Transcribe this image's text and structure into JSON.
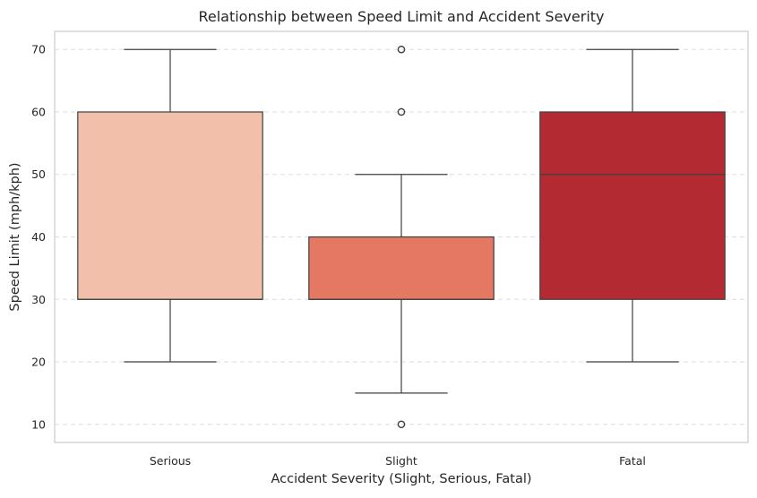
{
  "chart_data": {
    "type": "box",
    "title": "Relationship between Speed Limit and Accident Severity",
    "xlabel": "Accident Severity (Slight, Serious, Fatal)",
    "ylabel": "Speed Limit (mph/kph)",
    "categories": [
      "Serious",
      "Slight",
      "Fatal"
    ],
    "yticks": [
      10,
      20,
      30,
      40,
      50,
      60,
      70
    ],
    "ylim": [
      7.1,
      72.9
    ],
    "grid": "y-dashed",
    "boxes": [
      {
        "category": "Serious",
        "whisker_low": 20,
        "q1": 30,
        "median": 30,
        "q3": 60,
        "whisker_high": 70,
        "outliers": [],
        "color": "#f2bfaa"
      },
      {
        "category": "Slight",
        "whisker_low": 15,
        "q1": 30,
        "median": 30,
        "q3": 40,
        "whisker_high": 50,
        "outliers": [
          10,
          60,
          70
        ],
        "color": "#e57862"
      },
      {
        "category": "Fatal",
        "whisker_low": 20,
        "q1": 30,
        "median": 50,
        "q3": 60,
        "whisker_high": 70,
        "outliers": [],
        "color": "#b32a32"
      }
    ],
    "colors": {
      "box_edge": "#3f3f3f",
      "grid": "#dedede",
      "frame": "#cccccc"
    }
  }
}
